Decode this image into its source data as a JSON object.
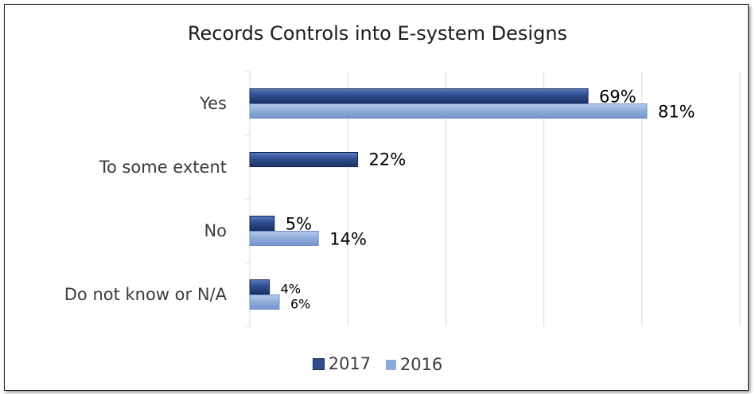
{
  "chart_data": {
    "type": "bar",
    "orientation": "horizontal",
    "title": "Records Controls into E-system Designs",
    "categories": [
      "Yes",
      "To some extent",
      "No",
      "Do not know or N/A"
    ],
    "series": [
      {
        "name": "2017",
        "color": "#2f4d8f",
        "values": [
          69,
          22,
          5,
          4
        ],
        "labels": [
          "69%",
          "22%",
          "5%",
          "4%"
        ]
      },
      {
        "name": "2016",
        "color": "#8eaadb",
        "values": [
          81,
          null,
          14,
          6
        ],
        "labels": [
          "81%",
          "",
          "14%",
          "6%"
        ]
      }
    ],
    "xlim": [
      0,
      100
    ],
    "grid": true,
    "legend_position": "bottom"
  }
}
